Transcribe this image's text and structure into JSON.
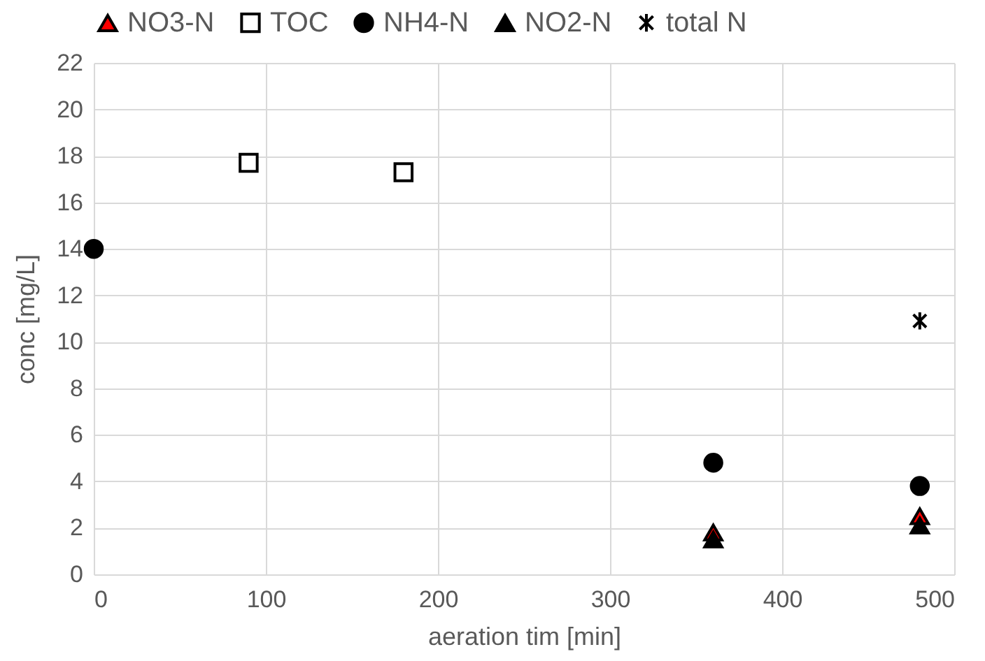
{
  "chart_data": {
    "type": "scatter",
    "xlabel": "aeration tim [min]",
    "ylabel": "conc [mg/L]",
    "xlim": [
      0,
      500
    ],
    "ylim": [
      0,
      22
    ],
    "xticks": [
      0,
      100,
      200,
      300,
      400,
      500
    ],
    "yticks": [
      0,
      2,
      4,
      6,
      8,
      10,
      12,
      14,
      16,
      18,
      20,
      22
    ],
    "grid": true,
    "legend": "top",
    "series": [
      {
        "name": "NO3-N",
        "color": "#ff0000",
        "marker": "triangle",
        "x": [
          360,
          480
        ],
        "values": [
          1.8,
          2.5
        ]
      },
      {
        "name": "TOC",
        "color": "#ffffff",
        "marker": "square",
        "x": [
          90,
          180
        ],
        "values": [
          17.7,
          17.3
        ]
      },
      {
        "name": "NH4-N",
        "color": "#000000",
        "marker": "circle",
        "x": [
          0,
          360,
          480
        ],
        "values": [
          14,
          4.8,
          3.8
        ]
      },
      {
        "name": "NO2-N",
        "color": "#000000",
        "marker": "triangle",
        "x": [
          360,
          480
        ],
        "values": [
          1.5,
          2.1
        ]
      },
      {
        "name": "total N",
        "color": "#000000",
        "marker": "cross",
        "x": [
          480
        ],
        "values": [
          10.9
        ]
      }
    ]
  }
}
